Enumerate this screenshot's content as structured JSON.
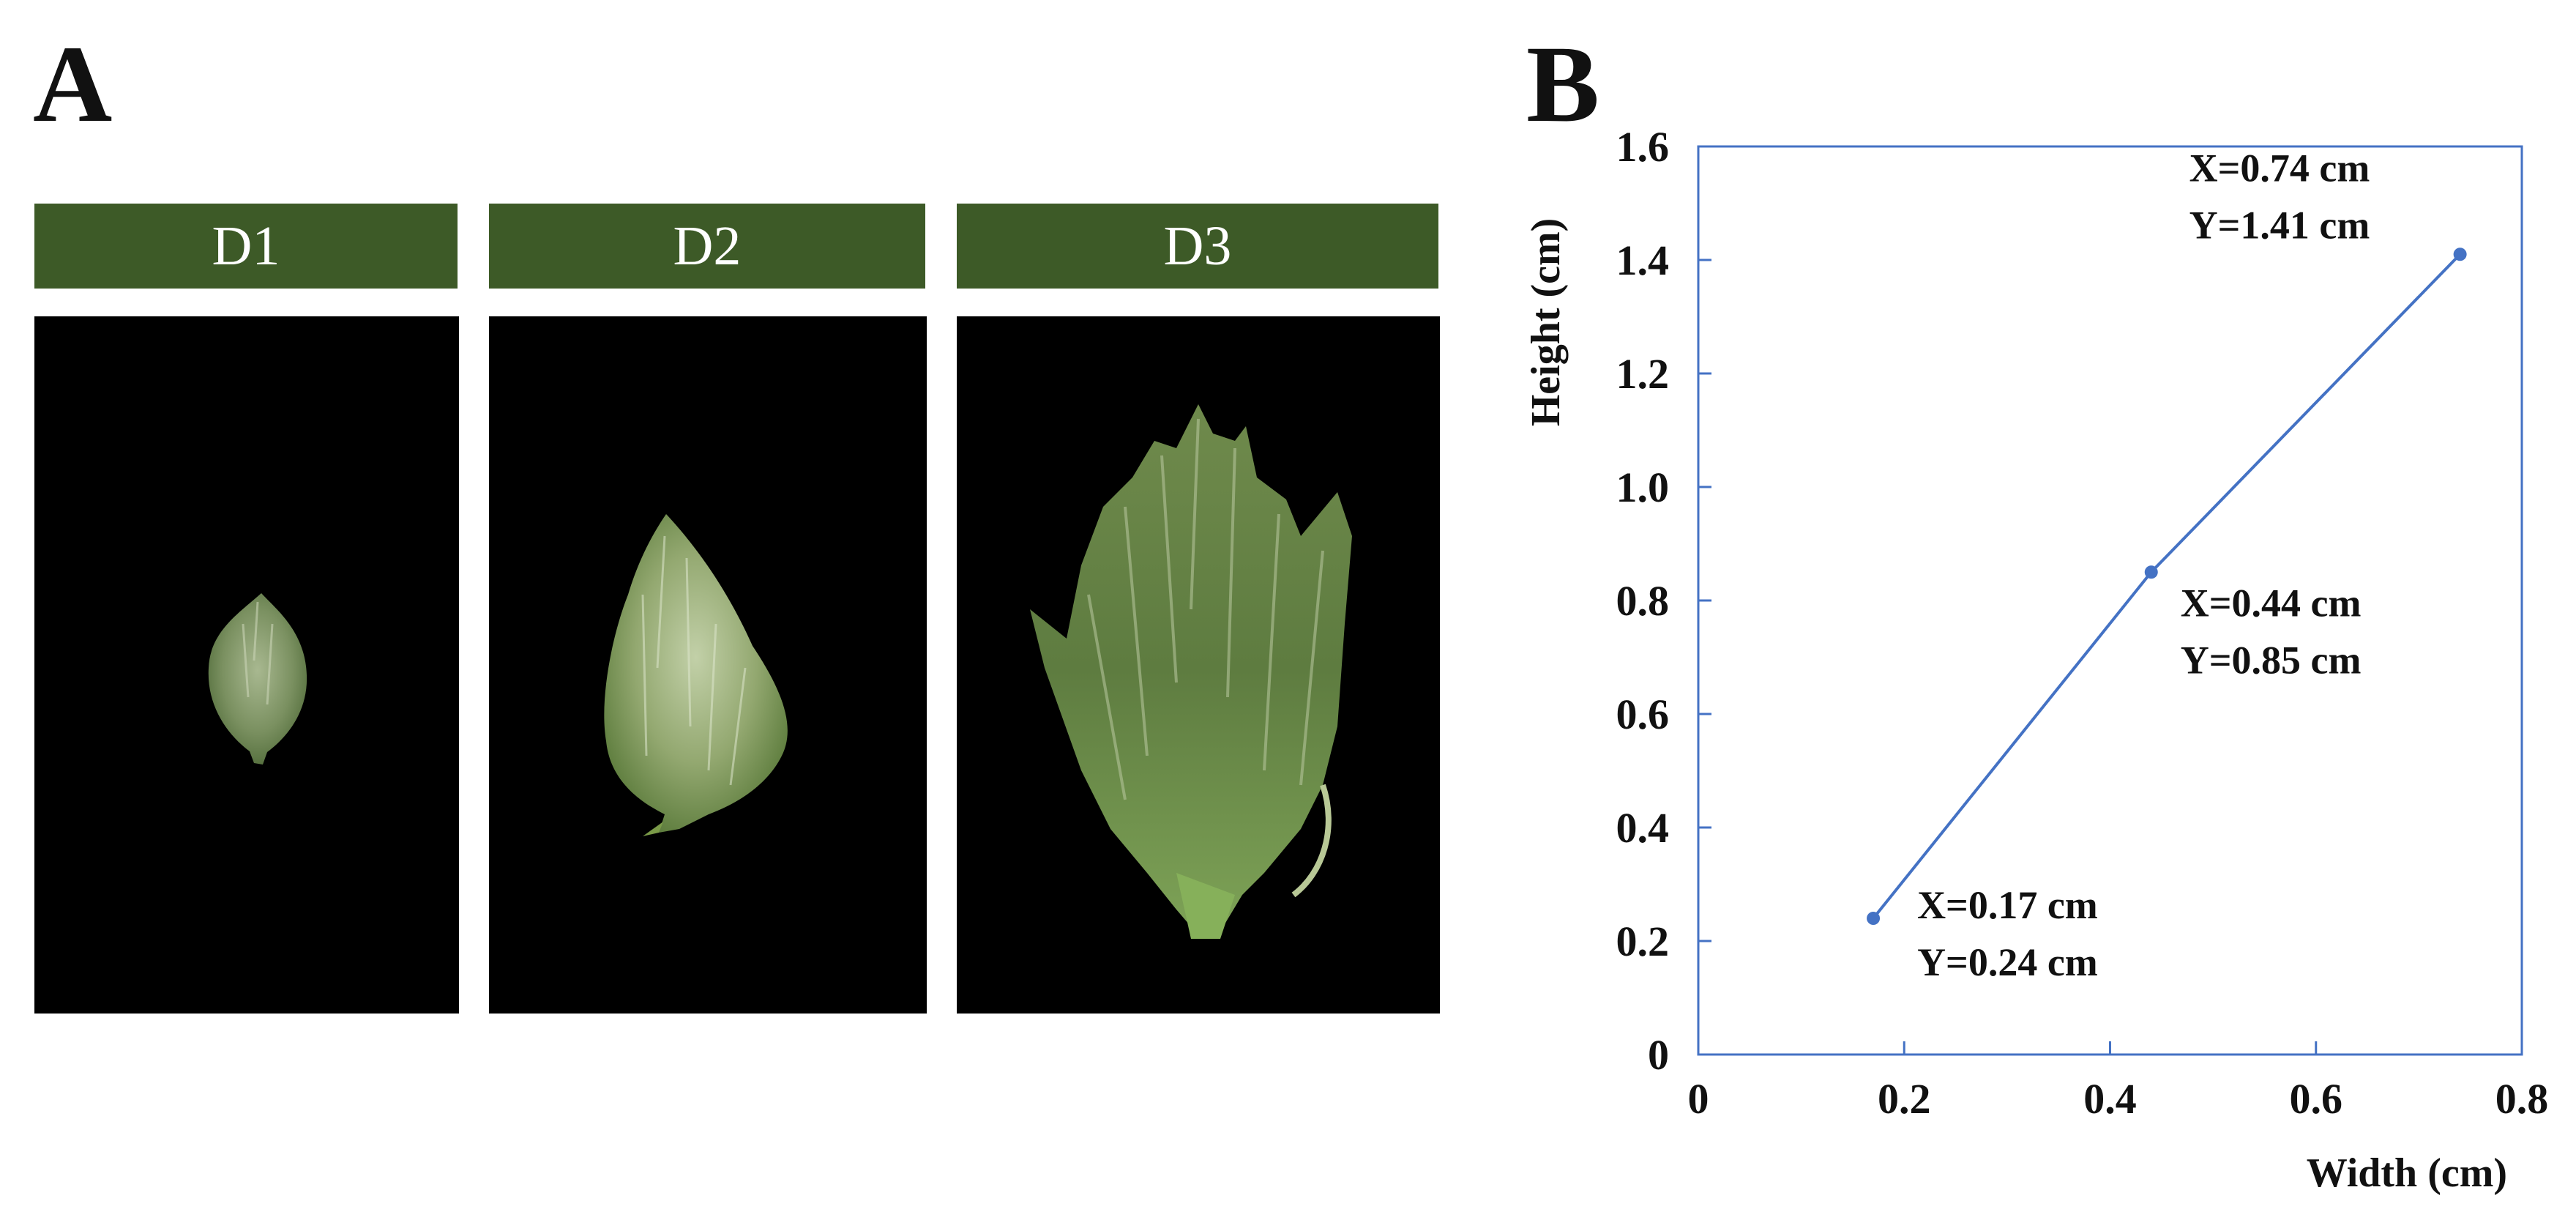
{
  "panel_a": {
    "letter": "A",
    "stages": [
      {
        "label": "D1",
        "icon": "bud-small-photo"
      },
      {
        "label": "D2",
        "icon": "bud-medium-photo"
      },
      {
        "label": "D3",
        "icon": "bud-large-photo"
      }
    ]
  },
  "panel_b": {
    "letter": "B"
  },
  "colors": {
    "header_green": "#3d5a27",
    "line_blue": "#4472c4"
  },
  "chart_data": {
    "type": "line",
    "title": "",
    "xlabel": "Width (cm)",
    "ylabel": "Height (cm)",
    "xlim": [
      0,
      0.8
    ],
    "ylim": [
      0,
      1.6
    ],
    "xticks": [
      0,
      0.2,
      0.4,
      0.6,
      0.8
    ],
    "xtick_labels": [
      "0",
      "0.2",
      "0.4",
      "0.6",
      "0.8"
    ],
    "yticks": [
      0,
      0.2,
      0.4,
      0.6,
      0.8,
      1.0,
      1.2,
      1.4,
      1.6
    ],
    "ytick_labels": [
      "0",
      "0.2",
      "0.4",
      "0.6",
      "0.8",
      "1.0",
      "1.2",
      "1.4",
      "1.6"
    ],
    "grid": false,
    "legend": "none",
    "series": [
      {
        "x": [
          0.17,
          0.44,
          0.74
        ],
        "y": [
          0.24,
          0.85,
          1.41
        ]
      }
    ],
    "annotations": [
      {
        "line1": "X=0.17 cm",
        "line2": "Y=0.24 cm"
      },
      {
        "line1": "X=0.44 cm",
        "line2": "Y=0.85 cm"
      },
      {
        "line1": "X=0.74 cm",
        "line2": "Y=1.41 cm"
      }
    ]
  }
}
